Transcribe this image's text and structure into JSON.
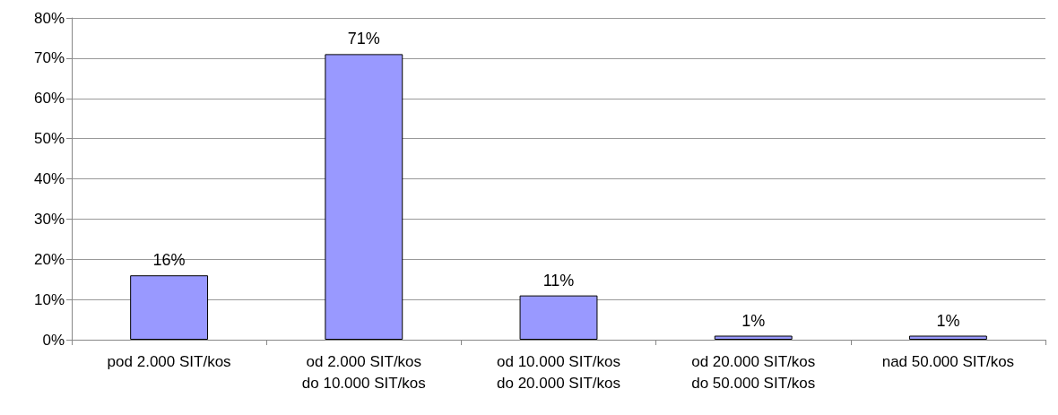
{
  "chart_data": {
    "type": "bar",
    "categories": [
      "pod 2.000 SIT/kos",
      "od 2.000 SIT/kos\ndo 10.000 SIT/kos",
      "od 10.000 SIT/kos\ndo 20.000 SIT/kos",
      "od 20.000 SIT/kos\ndo 50.000 SIT/kos",
      "nad 50.000 SIT/kos"
    ],
    "values": [
      16,
      71,
      11,
      1,
      1
    ],
    "value_labels": [
      "16%",
      "71%",
      "11%",
      "1%",
      "1%"
    ],
    "color": "#9999ff",
    "ylim": [
      0,
      80
    ],
    "yticks": [
      {
        "value": 0,
        "label": "0%"
      },
      {
        "value": 10,
        "label": "10%"
      },
      {
        "value": 20,
        "label": "20%"
      },
      {
        "value": 30,
        "label": "30%"
      },
      {
        "value": 40,
        "label": "40%"
      },
      {
        "value": 50,
        "label": "50%"
      },
      {
        "value": 60,
        "label": "60%"
      },
      {
        "value": 70,
        "label": "70%"
      },
      {
        "value": 80,
        "label": "80%"
      }
    ],
    "grid": "y"
  }
}
